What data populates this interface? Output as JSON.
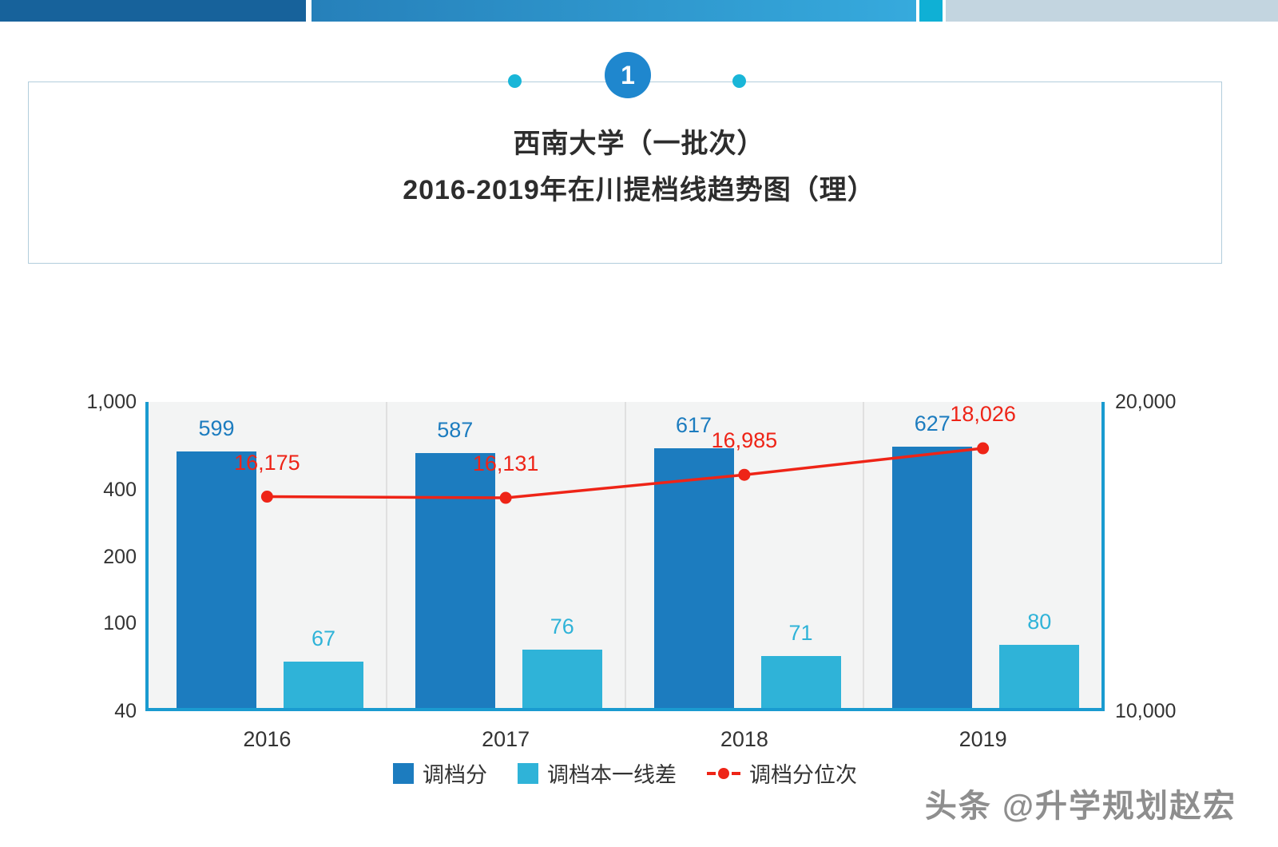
{
  "header": {
    "badge": "1",
    "title_line1": "西南大学（一批次）",
    "title_line2": "2016-2019年在川提档线趋势图（理）"
  },
  "watermark": "头条 @升学规划赵宏",
  "chart_data": {
    "type": "bar",
    "subtype": "grouped bars with secondary-axis line (both axes logarithmic)",
    "categories": [
      "2016",
      "2017",
      "2018",
      "2019"
    ],
    "series": [
      {
        "name": "调档分",
        "type": "bar",
        "axis": "left",
        "color": "#1c7cbf",
        "values": [
          599,
          587,
          617,
          627
        ]
      },
      {
        "name": "调档本一线差",
        "type": "bar",
        "axis": "left",
        "color": "#2fb3d8",
        "values": [
          67,
          76,
          71,
          80
        ]
      },
      {
        "name": "调档分位次",
        "type": "line",
        "axis": "right",
        "color": "#ee2417",
        "values": [
          16175,
          16131,
          16985,
          18026
        ]
      }
    ],
    "point_labels": {
      "bar1": [
        "599",
        "587",
        "617",
        "627"
      ],
      "bar2": [
        "67",
        "76",
        "71",
        "80"
      ],
      "line": [
        "16,175",
        "16,131",
        "16,985",
        "18,026"
      ]
    },
    "left_axis": {
      "scale": "log",
      "min": 40,
      "max": 1000,
      "ticks": [
        "1,000",
        "400",
        "200",
        "100",
        "40"
      ],
      "tick_values": [
        1000,
        400,
        200,
        100,
        40
      ]
    },
    "right_axis": {
      "scale": "log",
      "min": 10000,
      "max": 20000,
      "ticks": [
        "20,000",
        "10,000"
      ],
      "tick_values": [
        20000,
        10000
      ]
    },
    "legend": [
      {
        "label": "调档分",
        "swatch": "square",
        "color": "#1c7cbf"
      },
      {
        "label": "调档本一线差",
        "swatch": "square",
        "color": "#2fb3d8"
      },
      {
        "label": "调档分位次",
        "swatch": "line-dot",
        "color": "#ee2417"
      }
    ],
    "grid": "vertical category separators only",
    "legend_position": "bottom-center"
  }
}
